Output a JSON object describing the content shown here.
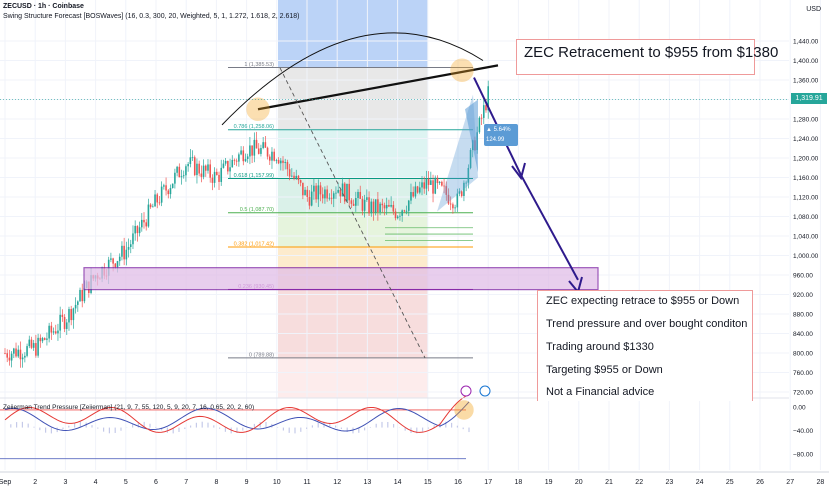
{
  "header": {
    "symbol_line": "ZECUSD · 1h · Coinbase",
    "indicator_line": "Swing Structure Forecast [BOSWaves] (16, 0.3, 300, 20, Weighted, 5, 1, 1.272, 1.618, 2, 2.618)"
  },
  "price_axis": {
    "currency": "USD",
    "current_price": "1,319.91",
    "ticks": [
      "1,440.00",
      "1,400.00",
      "1,360.00",
      "1,320.00",
      "1,280.00",
      "1,240.00",
      "1,200.00",
      "1,160.00",
      "1,120.00",
      "1,080.00",
      "1,040.00",
      "1,000.00",
      "960.00",
      "920.00",
      "880.00",
      "840.00",
      "800.00",
      "760.00",
      "720.00"
    ]
  },
  "osc_axis": {
    "ticks": [
      "0.00",
      "−40.00",
      "−80.00"
    ]
  },
  "time_axis": {
    "ticks": [
      "Sep",
      "2",
      "3",
      "4",
      "5",
      "6",
      "7",
      "8",
      "9",
      "10",
      "11",
      "12",
      "13",
      "14",
      "15",
      "16",
      "17",
      "18",
      "19",
      "20",
      "21",
      "22",
      "23",
      "24",
      "25",
      "26",
      "27",
      "28"
    ]
  },
  "fib_levels": [
    {
      "label": "1 (1,385.53)",
      "price": 1385.53,
      "color": "#787b86"
    },
    {
      "label": "0.786 (1,258.06)",
      "price": 1258.06,
      "color": "#26a69a"
    },
    {
      "label": "0.618 (1,157.99)",
      "price": 1157.99,
      "color": "#089981"
    },
    {
      "label": "0.5 (1,087.70)",
      "price": 1087.7,
      "color": "#4caf50"
    },
    {
      "label": "0.382 (1,017.42)",
      "price": 1017.42,
      "color": "#ff9800"
    },
    {
      "label": "0.236 (930.45)",
      "price": 930.45,
      "color": "#9c27b0"
    },
    {
      "label": "0 (789.88)",
      "price": 789.88,
      "color": "#787b86"
    }
  ],
  "annotations": {
    "title": "ZEC Retracement to $955 from $1380",
    "notes": [
      "ZEC expecting retrace to $955 or Down",
      "Trend pressure and over bought conditon",
      "Trading around $1330",
      "Targeting $955 or Down",
      "Not a Financial advice"
    ]
  },
  "forecast_labels": [
    "▲ 5.64%",
    "124.99"
  ],
  "oscillator": {
    "title": "Zeiierman Trend Pressure [Zeiierman] (21, 9, 7, 55, 120, 5, 9, 20, 7, 16, 0.65, 20, 2, 60)"
  },
  "colors": {
    "up": "#26a69a",
    "down": "#ef5350",
    "arrow": "#2e1a8c",
    "box_fill": "#e1bee7",
    "box_stroke": "#7b1fa2",
    "highlight": "#f5a623"
  },
  "chart_data": {
    "type": "line",
    "title": "ZECUSD · 1h · Coinbase",
    "xlabel": "",
    "ylabel": "USD",
    "x": [
      "Sep 1",
      "Sep 2",
      "Sep 3",
      "Sep 4",
      "Sep 5",
      "Sep 6",
      "Sep 7",
      "Sep 8",
      "Sep 9",
      "Sep 10",
      "Sep 11",
      "Sep 12",
      "Sep 13",
      "Sep 14",
      "Sep 15",
      "Sep 16",
      "Sep 17"
    ],
    "series": [
      {
        "name": "ZECUSD close",
        "values": [
          800,
          810,
          870,
          960,
          1010,
          1110,
          1190,
          1160,
          1220,
          1210,
          1120,
          1140,
          1100,
          1090,
          1150,
          1110,
          1330
        ]
      }
    ],
    "ylim": [
      720,
      1460
    ],
    "support_zone": [
      930,
      975
    ],
    "target_price": 955,
    "swing_high": 1380,
    "current_price": 1319.91
  }
}
